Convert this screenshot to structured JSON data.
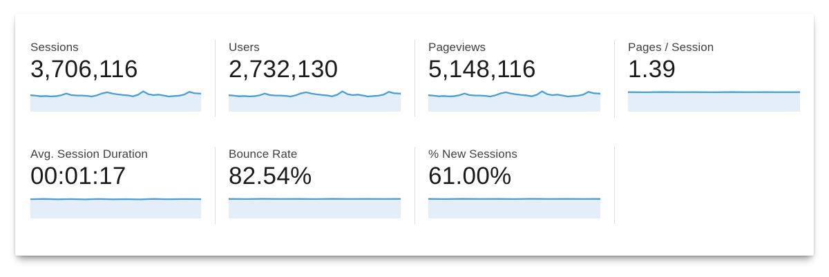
{
  "colors": {
    "spark_line": "#4a9cd6",
    "spark_fill": "#e3eef8",
    "divider": "#dcdcdc",
    "label_text": "#3f3f3f",
    "value_text": "#1b1b1b"
  },
  "spark_shapes": {
    "wavy": [
      [
        0,
        9
      ],
      [
        3,
        9.5
      ],
      [
        6,
        10.3
      ],
      [
        9,
        10
      ],
      [
        12,
        10.5
      ],
      [
        15,
        10.2
      ],
      [
        18,
        9
      ],
      [
        21,
        6.8
      ],
      [
        24,
        8.8
      ],
      [
        27,
        9.3
      ],
      [
        30,
        9.4
      ],
      [
        33,
        9.8
      ],
      [
        36,
        10.6
      ],
      [
        39,
        9
      ],
      [
        42,
        6.6
      ],
      [
        45,
        5.2
      ],
      [
        48,
        6.8
      ],
      [
        51,
        7.8
      ],
      [
        54,
        8.6
      ],
      [
        57,
        9.2
      ],
      [
        60,
        10.4
      ],
      [
        63,
        8.4
      ],
      [
        66,
        4
      ],
      [
        69,
        7.6
      ],
      [
        72,
        8.8
      ],
      [
        75,
        8.2
      ],
      [
        78,
        9.4
      ],
      [
        81,
        10.6
      ],
      [
        84,
        10
      ],
      [
        87,
        9.6
      ],
      [
        90,
        8.2
      ],
      [
        93,
        4.6
      ],
      [
        96,
        6.4
      ],
      [
        100,
        7
      ]
    ],
    "flat": [
      [
        0,
        5
      ],
      [
        10,
        5.2
      ],
      [
        20,
        4.9
      ],
      [
        30,
        5.1
      ],
      [
        40,
        5
      ],
      [
        50,
        5.2
      ],
      [
        60,
        4.9
      ],
      [
        70,
        5.1
      ],
      [
        80,
        5
      ],
      [
        90,
        5.1
      ],
      [
        100,
        5
      ]
    ],
    "wiggle": [
      [
        0,
        5.4
      ],
      [
        8,
        5
      ],
      [
        16,
        5.5
      ],
      [
        24,
        5.2
      ],
      [
        32,
        5.6
      ],
      [
        40,
        5.1
      ],
      [
        48,
        5.5
      ],
      [
        56,
        5.3
      ],
      [
        64,
        5.6
      ],
      [
        72,
        5
      ],
      [
        80,
        5.4
      ],
      [
        88,
        5.2
      ],
      [
        100,
        5.3
      ]
    ]
  },
  "metrics": [
    {
      "label": "Sessions",
      "value": "3,706,116",
      "spark_shape": "wavy"
    },
    {
      "label": "Users",
      "value": "2,732,130",
      "spark_shape": "wavy"
    },
    {
      "label": "Pageviews",
      "value": "5,148,116",
      "spark_shape": "wavy"
    },
    {
      "label": "Pages / Session",
      "value": "1.39",
      "spark_shape": "flat"
    },
    {
      "label": "Avg. Session Duration",
      "value": "00:01:17",
      "spark_shape": "wiggle"
    },
    {
      "label": "Bounce Rate",
      "value": "82.54%",
      "spark_shape": "flat"
    },
    {
      "label": "% New Sessions",
      "value": "61.00%",
      "spark_shape": "flat"
    }
  ],
  "chart_data": [
    {
      "type": "area",
      "name": "Sessions",
      "metric_value": "3,706,116",
      "x_range": [
        0,
        100
      ],
      "axes_labeled": false,
      "relative_values": [
        0.7,
        0.68,
        0.66,
        0.67,
        0.65,
        0.66,
        0.7,
        0.77,
        0.71,
        0.69,
        0.69,
        0.67,
        0.65,
        0.7,
        0.78,
        0.83,
        0.77,
        0.74,
        0.71,
        0.69,
        0.65,
        0.72,
        0.87,
        0.75,
        0.71,
        0.73,
        0.69,
        0.65,
        0.67,
        0.68,
        0.73,
        0.85,
        0.79,
        0.77
      ]
    },
    {
      "type": "area",
      "name": "Users",
      "metric_value": "2,732,130",
      "x_range": [
        0,
        100
      ],
      "axes_labeled": false,
      "relative_values": [
        0.7,
        0.68,
        0.66,
        0.67,
        0.65,
        0.66,
        0.7,
        0.77,
        0.71,
        0.69,
        0.69,
        0.67,
        0.65,
        0.7,
        0.78,
        0.83,
        0.77,
        0.74,
        0.71,
        0.69,
        0.65,
        0.72,
        0.87,
        0.75,
        0.71,
        0.73,
        0.69,
        0.65,
        0.67,
        0.68,
        0.73,
        0.85,
        0.79,
        0.77
      ]
    },
    {
      "type": "area",
      "name": "Pageviews",
      "metric_value": "5,148,116",
      "x_range": [
        0,
        100
      ],
      "axes_labeled": false,
      "relative_values": [
        0.7,
        0.68,
        0.66,
        0.67,
        0.65,
        0.66,
        0.7,
        0.77,
        0.71,
        0.69,
        0.69,
        0.67,
        0.65,
        0.7,
        0.78,
        0.83,
        0.77,
        0.74,
        0.71,
        0.69,
        0.65,
        0.72,
        0.87,
        0.75,
        0.71,
        0.73,
        0.69,
        0.65,
        0.67,
        0.68,
        0.73,
        0.85,
        0.79,
        0.77
      ]
    },
    {
      "type": "area",
      "name": "Pages / Session",
      "metric_value": "1.39",
      "x_range": [
        0,
        100
      ],
      "axes_labeled": false,
      "relative_values": [
        0.83,
        0.83,
        0.84,
        0.83,
        0.83,
        0.83,
        0.84,
        0.83,
        0.83,
        0.83,
        0.83
      ]
    },
    {
      "type": "area",
      "name": "Avg. Session Duration",
      "metric_value": "00:01:17",
      "x_range": [
        0,
        100
      ],
      "axes_labeled": false,
      "relative_values": [
        0.82,
        0.83,
        0.82,
        0.83,
        0.81,
        0.83,
        0.82,
        0.82,
        0.81,
        0.83,
        0.82,
        0.83,
        0.82
      ]
    },
    {
      "type": "area",
      "name": "Bounce Rate",
      "metric_value": "82.54%",
      "x_range": [
        0,
        100
      ],
      "axes_labeled": false,
      "relative_values": [
        0.83,
        0.83,
        0.84,
        0.83,
        0.83,
        0.83,
        0.84,
        0.83,
        0.83,
        0.83,
        0.83
      ]
    },
    {
      "type": "area",
      "name": "% New Sessions",
      "metric_value": "61.00%",
      "x_range": [
        0,
        100
      ],
      "axes_labeled": false,
      "relative_values": [
        0.83,
        0.83,
        0.84,
        0.83,
        0.83,
        0.83,
        0.84,
        0.83,
        0.83,
        0.83,
        0.83
      ]
    }
  ]
}
